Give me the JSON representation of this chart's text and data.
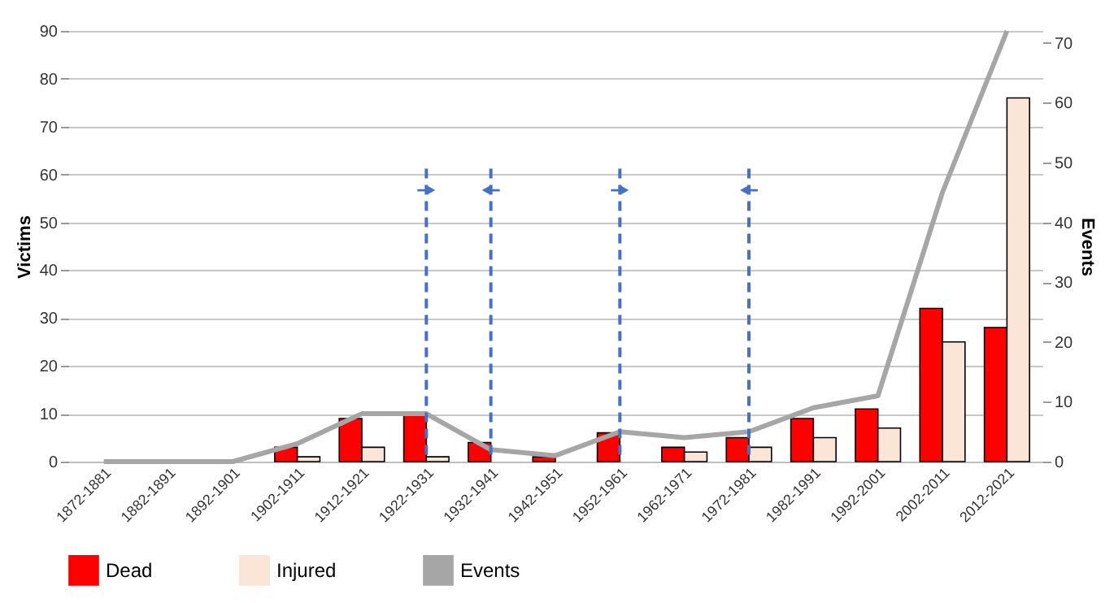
{
  "chart_data": {
    "type": "bar",
    "ylabel": "Victims",
    "y2label": "Events",
    "categories": [
      "1872-1881",
      "1882-1891",
      "1892-1901",
      "1902-1911",
      "1912-1921",
      "1922-1931",
      "1932-1941",
      "1942-1951",
      "1952-1961",
      "1962-1971",
      "1972-1981",
      "1982-1991",
      "1992-2001",
      "2002-2011",
      "2012-2021"
    ],
    "series": [
      {
        "name": "Dead",
        "color": "#ff0000",
        "values": [
          0,
          0,
          0,
          3,
          9,
          10,
          4,
          1,
          6,
          3,
          5,
          9,
          11,
          32,
          28
        ]
      },
      {
        "name": "Injured",
        "color": "#fbe5d6",
        "values": [
          0,
          0,
          0,
          1,
          3,
          1,
          0,
          0,
          0,
          2,
          3,
          5,
          7,
          25,
          76
        ]
      },
      {
        "name": "Events",
        "color": "#a6a6a6",
        "type": "line",
        "axis": "y2",
        "marker": "none",
        "values": [
          0,
          0,
          0,
          3,
          8,
          8,
          2,
          1,
          5,
          4,
          5,
          9,
          11,
          45,
          72
        ]
      }
    ],
    "ylim": [
      0,
      90
    ],
    "yticks": [
      0,
      10,
      20,
      30,
      40,
      50,
      60,
      70,
      80,
      90
    ],
    "y2lim": [
      0,
      72
    ],
    "y2ticks": [
      0,
      10,
      20,
      30,
      40,
      50,
      60,
      70
    ],
    "ref_lines": [
      {
        "axis": "x",
        "value": "1922-1931",
        "color": "#4472c4",
        "line_style": "dashed"
      },
      {
        "axis": "x",
        "value": "1932-1941",
        "color": "#4472c4",
        "line_style": "dashed"
      },
      {
        "axis": "x",
        "value": "1952-1961",
        "color": "#4472c4",
        "line_style": "dashed"
      },
      {
        "axis": "x",
        "value": "1972-1981",
        "color": "#4472c4",
        "line_style": "dashed"
      }
    ],
    "grid": "y",
    "legend": "bottom"
  }
}
